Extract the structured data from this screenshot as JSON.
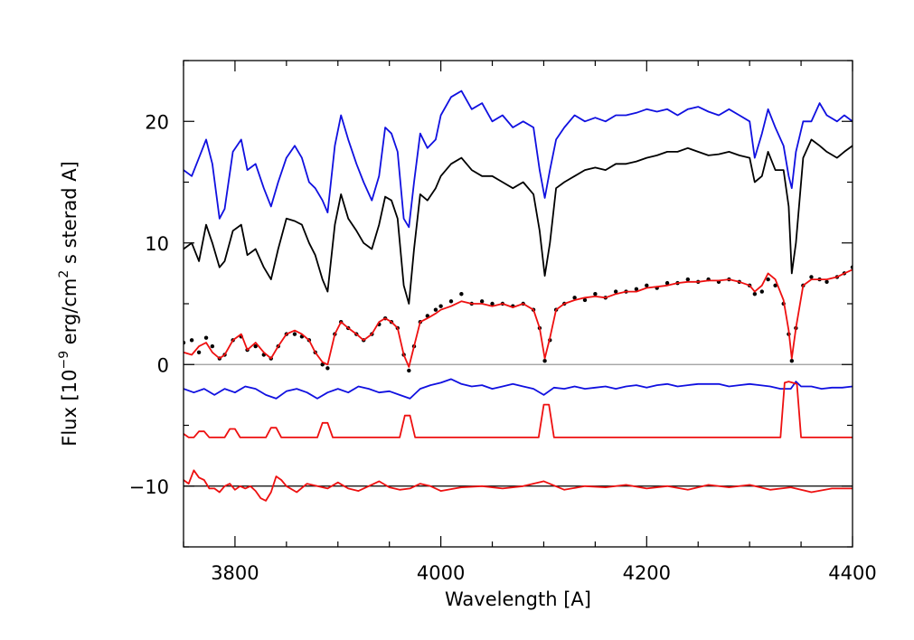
{
  "chart_data": {
    "type": "line",
    "xlabel": "Wavelength [A]",
    "ylabel": {
      "prefix": "Flux [10",
      "exp1": "−9",
      "mid": " erg/cm",
      "exp2": "2",
      "suffix": " s sterad A]"
    },
    "xlim": [
      3750,
      4400
    ],
    "ylim": [
      -15,
      25
    ],
    "x_ticks": [
      3800,
      4000,
      4200,
      4400
    ],
    "x_tick_labels": [
      "3800",
      "4000",
      "4200",
      "4400"
    ],
    "y_ticks": [
      -10,
      0,
      10,
      20
    ],
    "y_tick_labels": [
      "−10",
      "0",
      "10",
      "20"
    ],
    "grid": false,
    "hlines": [
      {
        "y": 0,
        "color": "#999999"
      },
      {
        "y": -10,
        "color": "#000000"
      }
    ],
    "colors": {
      "blue": "#1010e0",
      "black": "#000000",
      "red": "#ee1010"
    },
    "series": [
      {
        "color": "#1010e0",
        "style": "line",
        "x": [
          3750,
          3758,
          3765,
          3772,
          3778,
          3785,
          3790,
          3798,
          3806,
          3812,
          3820,
          3828,
          3835,
          3842,
          3850,
          3858,
          3865,
          3872,
          3878,
          3885,
          3890,
          3897,
          3903,
          3910,
          3918,
          3925,
          3933,
          3940,
          3946,
          3952,
          3958,
          3964,
          3969,
          3974,
          3980,
          3987,
          3995,
          4000,
          4010,
          4020,
          4030,
          4040,
          4050,
          4060,
          4070,
          4080,
          4090,
          4096,
          4101,
          4106,
          4112,
          4120,
          4130,
          4140,
          4150,
          4160,
          4170,
          4180,
          4190,
          4200,
          4210,
          4220,
          4230,
          4240,
          4250,
          4260,
          4270,
          4280,
          4290,
          4300,
          4305,
          4312,
          4318,
          4325,
          4333,
          4338,
          4341,
          4345,
          4352,
          4360,
          4368,
          4375,
          4385,
          4392,
          4400
        ],
        "y": [
          16,
          15.5,
          17,
          18.5,
          16.5,
          12,
          12.8,
          17.5,
          18.5,
          16,
          16.5,
          14.5,
          13,
          15,
          17,
          18,
          17,
          15,
          14.5,
          13.5,
          12.5,
          18,
          20.5,
          18.5,
          16.5,
          15,
          13.5,
          15.5,
          19.5,
          19,
          17.5,
          12,
          11.3,
          15,
          19,
          17.8,
          18.5,
          20.5,
          22,
          22.5,
          21,
          21.5,
          20,
          20.5,
          19.5,
          20,
          19.5,
          16,
          13.7,
          16,
          18.5,
          19.5,
          20.5,
          20,
          20.3,
          20,
          20.5,
          20.5,
          20.7,
          21,
          20.8,
          21,
          20.5,
          21,
          21.2,
          20.8,
          20.5,
          21,
          20.5,
          20,
          17,
          19,
          21,
          19.5,
          18,
          15.5,
          14.5,
          17.5,
          20,
          20,
          21.5,
          20.5,
          20,
          20.5,
          20
        ]
      },
      {
        "color": "#000000",
        "style": "line",
        "x": [
          3750,
          3758,
          3765,
          3772,
          3778,
          3785,
          3790,
          3798,
          3806,
          3812,
          3820,
          3828,
          3835,
          3842,
          3850,
          3858,
          3865,
          3872,
          3878,
          3885,
          3890,
          3897,
          3903,
          3910,
          3918,
          3925,
          3933,
          3940,
          3946,
          3952,
          3958,
          3964,
          3969,
          3974,
          3980,
          3987,
          3995,
          4000,
          4010,
          4020,
          4030,
          4040,
          4050,
          4060,
          4070,
          4080,
          4090,
          4096,
          4101,
          4106,
          4112,
          4120,
          4130,
          4140,
          4150,
          4160,
          4170,
          4180,
          4190,
          4200,
          4210,
          4220,
          4230,
          4240,
          4250,
          4260,
          4270,
          4280,
          4290,
          4300,
          4305,
          4312,
          4318,
          4325,
          4333,
          4338,
          4341,
          4345,
          4352,
          4360,
          4368,
          4375,
          4385,
          4392,
          4400
        ],
        "y": [
          9.5,
          10,
          8.5,
          11.5,
          10,
          8,
          8.5,
          11,
          11.5,
          9,
          9.5,
          8,
          7,
          9.5,
          12,
          11.8,
          11.5,
          10,
          9,
          7,
          6,
          11.5,
          14,
          12,
          11,
          10,
          9.5,
          11.5,
          13.8,
          13.5,
          12,
          6.5,
          5,
          9.5,
          14,
          13.5,
          14.5,
          15.5,
          16.5,
          17,
          16,
          15.5,
          15.5,
          15,
          14.5,
          15,
          14,
          11,
          7.3,
          10,
          14.5,
          15,
          15.5,
          16,
          16.2,
          16,
          16.5,
          16.5,
          16.7,
          17,
          17.2,
          17.5,
          17.5,
          17.8,
          17.5,
          17.2,
          17.3,
          17.5,
          17.2,
          17,
          15,
          15.5,
          17.5,
          16,
          16,
          13,
          7.5,
          10,
          17,
          18.5,
          18,
          17.5,
          17,
          17.5,
          18
        ]
      },
      {
        "color": "#000000",
        "style": "dots",
        "x": [
          3750,
          3758,
          3765,
          3772,
          3778,
          3785,
          3790,
          3798,
          3806,
          3812,
          3820,
          3828,
          3835,
          3842,
          3850,
          3858,
          3865,
          3872,
          3878,
          3885,
          3890,
          3897,
          3903,
          3910,
          3918,
          3925,
          3933,
          3940,
          3946,
          3952,
          3958,
          3964,
          3969,
          3974,
          3980,
          3987,
          3995,
          4000,
          4010,
          4020,
          4030,
          4040,
          4050,
          4060,
          4070,
          4080,
          4090,
          4096,
          4101,
          4106,
          4112,
          4120,
          4130,
          4140,
          4150,
          4160,
          4170,
          4180,
          4190,
          4200,
          4210,
          4220,
          4230,
          4240,
          4250,
          4260,
          4270,
          4280,
          4290,
          4300,
          4305,
          4312,
          4318,
          4325,
          4333,
          4338,
          4341,
          4345,
          4352,
          4360,
          4368,
          4375,
          4385,
          4392,
          4400
        ],
        "y": [
          1.8,
          2,
          1,
          2.2,
          1.5,
          0.5,
          0.8,
          2,
          2.3,
          1.2,
          1.5,
          0.8,
          0.5,
          1.5,
          2.5,
          2.5,
          2.3,
          2,
          1,
          0,
          -0.3,
          2.5,
          3.5,
          3,
          2.5,
          2,
          2.5,
          3.3,
          3.8,
          3.5,
          3,
          0.8,
          -0.5,
          1.5,
          3.5,
          4,
          4.5,
          4.8,
          5.2,
          5.8,
          5,
          5.2,
          5,
          5,
          4.8,
          5,
          4.5,
          3,
          0.3,
          2,
          4.5,
          5,
          5.5,
          5.3,
          5.8,
          5.5,
          6,
          6,
          6.2,
          6.5,
          6.3,
          6.7,
          6.7,
          7,
          6.8,
          7,
          6.8,
          7,
          6.8,
          6.5,
          5.8,
          6,
          7,
          6.5,
          5,
          2.5,
          0.3,
          3,
          6.5,
          7.2,
          7,
          6.8,
          7.2,
          7.5,
          8
        ]
      },
      {
        "color": "#ee1010",
        "style": "line",
        "x": [
          3750,
          3758,
          3765,
          3772,
          3778,
          3785,
          3790,
          3798,
          3806,
          3812,
          3820,
          3828,
          3835,
          3842,
          3850,
          3858,
          3865,
          3872,
          3878,
          3885,
          3890,
          3897,
          3903,
          3910,
          3918,
          3925,
          3933,
          3940,
          3946,
          3952,
          3958,
          3964,
          3969,
          3974,
          3980,
          3987,
          3995,
          4000,
          4010,
          4020,
          4030,
          4040,
          4050,
          4060,
          4070,
          4080,
          4090,
          4096,
          4101,
          4106,
          4112,
          4120,
          4130,
          4140,
          4150,
          4160,
          4170,
          4180,
          4190,
          4200,
          4210,
          4220,
          4230,
          4240,
          4250,
          4260,
          4270,
          4280,
          4290,
          4300,
          4305,
          4312,
          4318,
          4325,
          4333,
          4338,
          4341,
          4345,
          4352,
          4360,
          4368,
          4375,
          4385,
          4392,
          4400
        ],
        "y": [
          1,
          0.8,
          1.5,
          1.8,
          1,
          0.5,
          0.8,
          2,
          2.5,
          1.2,
          1.8,
          1,
          0.5,
          1.5,
          2.5,
          2.8,
          2.5,
          2,
          1,
          0.2,
          0,
          2.5,
          3.5,
          3,
          2.5,
          2,
          2.5,
          3.5,
          3.8,
          3.5,
          3,
          0.8,
          -0.2,
          1.5,
          3.5,
          3.8,
          4.2,
          4.5,
          4.8,
          5.2,
          5,
          5,
          4.8,
          5,
          4.7,
          5,
          4.5,
          3,
          0.5,
          2.2,
          4.5,
          5,
          5.3,
          5.5,
          5.6,
          5.5,
          5.8,
          6,
          6,
          6.3,
          6.4,
          6.5,
          6.7,
          6.8,
          6.8,
          6.9,
          6.9,
          7,
          6.8,
          6.5,
          6,
          6.5,
          7.5,
          7,
          5.3,
          2.8,
          0.5,
          3,
          6.5,
          7,
          7,
          7,
          7.2,
          7.5,
          7.8
        ]
      },
      {
        "color": "#1010e0",
        "style": "line",
        "x": [
          3750,
          3760,
          3770,
          3780,
          3790,
          3800,
          3810,
          3820,
          3830,
          3840,
          3850,
          3860,
          3870,
          3880,
          3890,
          3900,
          3910,
          3920,
          3930,
          3940,
          3950,
          3960,
          3970,
          3980,
          3990,
          4000,
          4010,
          4020,
          4030,
          4040,
          4050,
          4060,
          4070,
          4080,
          4090,
          4100,
          4110,
          4120,
          4130,
          4140,
          4150,
          4160,
          4170,
          4180,
          4190,
          4200,
          4210,
          4220,
          4230,
          4240,
          4250,
          4260,
          4270,
          4280,
          4290,
          4300,
          4310,
          4320,
          4330,
          4340,
          4345,
          4350,
          4360,
          4370,
          4380,
          4390,
          4400
        ],
        "y": [
          -2,
          -2.3,
          -2,
          -2.5,
          -2,
          -2.3,
          -1.8,
          -2,
          -2.5,
          -2.8,
          -2.2,
          -2,
          -2.3,
          -2.8,
          -2.3,
          -2,
          -2.3,
          -1.8,
          -2,
          -2.3,
          -2.2,
          -2.5,
          -2.8,
          -2,
          -1.7,
          -1.5,
          -1.2,
          -1.6,
          -1.8,
          -1.7,
          -2,
          -1.8,
          -1.6,
          -1.8,
          -2,
          -2.5,
          -1.9,
          -2,
          -1.8,
          -2,
          -1.9,
          -1.8,
          -2,
          -1.8,
          -1.7,
          -1.9,
          -1.7,
          -1.6,
          -1.8,
          -1.7,
          -1.6,
          -1.6,
          -1.6,
          -1.8,
          -1.7,
          -1.6,
          -1.7,
          -1.8,
          -2,
          -2,
          -1.4,
          -1.8,
          -1.8,
          -2,
          -1.9,
          -1.9,
          -1.8
        ]
      },
      {
        "color": "#ee1010",
        "style": "line",
        "x": [
          3750,
          3755,
          3760,
          3765,
          3770,
          3775,
          3780,
          3790,
          3795,
          3800,
          3805,
          3810,
          3830,
          3835,
          3840,
          3845,
          3850,
          3880,
          3885,
          3890,
          3895,
          3900,
          3960,
          3965,
          3970,
          3975,
          3980,
          4095,
          4100,
          4105,
          4110,
          4115,
          4330,
          4334,
          4338,
          4346,
          4350,
          4400
        ],
        "y": [
          -5.7,
          -6,
          -6,
          -5.5,
          -5.5,
          -6,
          -6,
          -6,
          -5.3,
          -5.3,
          -6,
          -6,
          -6,
          -5.2,
          -5.2,
          -6,
          -6,
          -6,
          -4.8,
          -4.8,
          -6,
          -6,
          -6,
          -4.2,
          -4.2,
          -6,
          -6,
          -6,
          -3.3,
          -3.3,
          -6,
          -6,
          -6,
          -1.5,
          -1.4,
          -1.6,
          -6,
          -6
        ]
      },
      {
        "color": "#ee1010",
        "style": "line",
        "x": [
          3750,
          3755,
          3760,
          3765,
          3770,
          3775,
          3780,
          3785,
          3790,
          3795,
          3800,
          3805,
          3810,
          3815,
          3820,
          3825,
          3830,
          3835,
          3840,
          3845,
          3850,
          3860,
          3870,
          3880,
          3890,
          3900,
          3910,
          3920,
          3930,
          3940,
          3950,
          3960,
          3970,
          3980,
          3990,
          4000,
          4020,
          4040,
          4060,
          4080,
          4100,
          4120,
          4140,
          4160,
          4180,
          4200,
          4220,
          4240,
          4260,
          4280,
          4300,
          4320,
          4340,
          4360,
          4380,
          4400
        ],
        "y": [
          -9.5,
          -9.8,
          -8.7,
          -9.3,
          -9.5,
          -10.2,
          -10.2,
          -10.5,
          -10,
          -9.8,
          -10.3,
          -10,
          -10.2,
          -10,
          -10.4,
          -11,
          -11.2,
          -10.5,
          -9.2,
          -9.5,
          -10,
          -10.5,
          -9.8,
          -10,
          -10.2,
          -9.7,
          -10.2,
          -10.4,
          -10,
          -9.6,
          -10.1,
          -10.3,
          -10.2,
          -9.8,
          -10,
          -10.4,
          -10.1,
          -10,
          -10.2,
          -10,
          -9.6,
          -10.3,
          -10,
          -10.1,
          -9.9,
          -10.2,
          -10,
          -10.3,
          -9.9,
          -10.1,
          -9.9,
          -10.3,
          -10.1,
          -10.5,
          -10.2,
          -10.2
        ]
      }
    ]
  }
}
